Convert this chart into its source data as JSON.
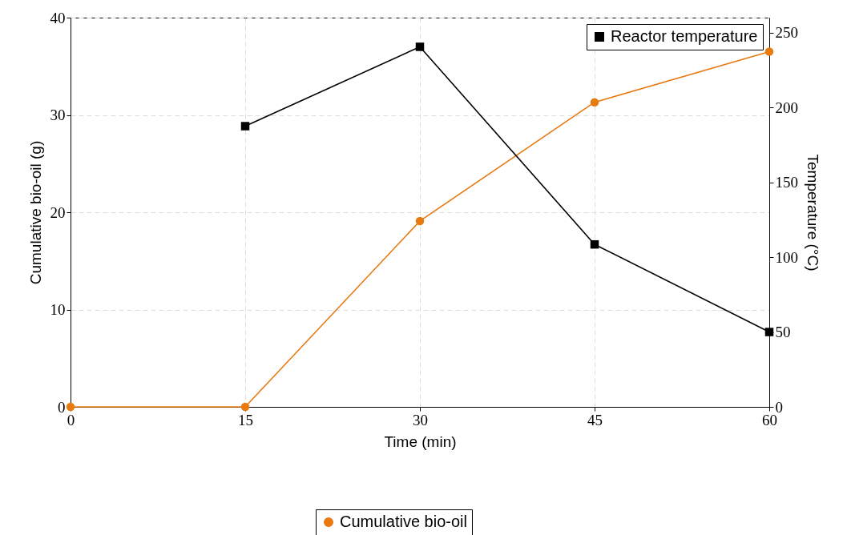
{
  "chart_data": {
    "type": "line",
    "xlabel": "Time (min)",
    "ylabel": "Cumulative bio-oil (g)",
    "y2label": "Temperature (°C)",
    "x": [
      0,
      15,
      30,
      45,
      60
    ],
    "series": [
      {
        "name": "Cumulative bio-oil",
        "color": "#e87a12",
        "values": [
          0,
          0,
          19.1,
          31.3,
          36.5
        ],
        "marker": "circle"
      },
      {
        "name": "Reactor temperature",
        "color": "#000000",
        "x": [
          15,
          30,
          45,
          60
        ],
        "values": [
          187.5,
          240.5,
          108.5,
          50
        ],
        "axis": "y2",
        "marker": "square"
      }
    ],
    "xlim": [
      0,
      60
    ],
    "xticks": [
      0,
      15,
      30,
      45,
      60
    ],
    "ylim": [
      0,
      40
    ],
    "yticks": [
      0,
      10,
      20,
      30,
      40
    ],
    "y2lim": [
      0,
      260
    ],
    "y2ticks": [
      0,
      50,
      100,
      150,
      200,
      250
    ],
    "grid": true,
    "legend": [
      "bottom",
      "top right"
    ],
    "line_style": "solid"
  }
}
